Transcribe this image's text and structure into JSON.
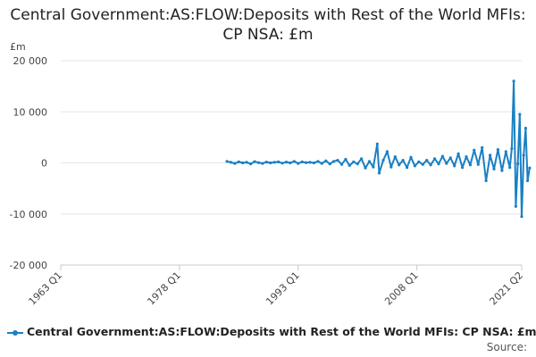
{
  "chart_data": {
    "type": "line",
    "title": "Central Government:AS:FLOW:Deposits with Rest of the World MFIs: CP NSA: £m",
    "ylabel": "£m",
    "xlabel": "",
    "xlim": [
      1963,
      2021.25
    ],
    "ylim": [
      -20000,
      20000
    ],
    "y_ticks": [
      {
        "value": 20000,
        "label": "20 000"
      },
      {
        "value": 10000,
        "label": "10 000"
      },
      {
        "value": 0,
        "label": "0"
      },
      {
        "value": -10000,
        "label": "-10 000"
      },
      {
        "value": -20000,
        "label": "-20 000"
      }
    ],
    "x_ticks": [
      {
        "value": 1963,
        "label": "1963 Q1"
      },
      {
        "value": 1978,
        "label": "1978 Q1"
      },
      {
        "value": 1993,
        "label": "1993 Q1"
      },
      {
        "value": 2008,
        "label": "2008 Q1"
      },
      {
        "value": 2021.25,
        "label": "2021 Q2"
      }
    ],
    "grid": true,
    "legend_position": "bottom",
    "series": [
      {
        "name": "Central Government:AS:FLOW:Deposits with Rest of the World MFIs: CP NSA: £m",
        "color": "#1a80c4",
        "points": [
          [
            1984.0,
            300
          ],
          [
            1984.5,
            100
          ],
          [
            1985.0,
            -100
          ],
          [
            1985.5,
            200
          ],
          [
            1986.0,
            0
          ],
          [
            1986.5,
            100
          ],
          [
            1987.0,
            -200
          ],
          [
            1987.5,
            250
          ],
          [
            1988.0,
            50
          ],
          [
            1988.5,
            -100
          ],
          [
            1989.0,
            150
          ],
          [
            1989.5,
            0
          ],
          [
            1990.0,
            100
          ],
          [
            1990.5,
            200
          ],
          [
            1991.0,
            -50
          ],
          [
            1991.5,
            150
          ],
          [
            1992.0,
            0
          ],
          [
            1992.5,
            300
          ],
          [
            1993.0,
            -100
          ],
          [
            1993.5,
            200
          ],
          [
            1994.0,
            50
          ],
          [
            1994.5,
            100
          ],
          [
            1995.0,
            0
          ],
          [
            1995.5,
            300
          ],
          [
            1996.0,
            -100
          ],
          [
            1996.5,
            400
          ],
          [
            1997.0,
            -200
          ],
          [
            1997.5,
            300
          ],
          [
            1998.0,
            500
          ],
          [
            1998.5,
            -300
          ],
          [
            1999.0,
            700
          ],
          [
            1999.5,
            -500
          ],
          [
            2000.0,
            200
          ],
          [
            2000.5,
            -200
          ],
          [
            2001.0,
            800
          ],
          [
            2001.5,
            -1000
          ],
          [
            2002.0,
            300
          ],
          [
            2002.5,
            -800
          ],
          [
            2003.0,
            3700
          ],
          [
            2003.25,
            -2000
          ],
          [
            2003.75,
            500
          ],
          [
            2004.25,
            2200
          ],
          [
            2004.75,
            -800
          ],
          [
            2005.25,
            1200
          ],
          [
            2005.75,
            -400
          ],
          [
            2006.25,
            500
          ],
          [
            2006.75,
            -900
          ],
          [
            2007.25,
            1100
          ],
          [
            2007.75,
            -600
          ],
          [
            2008.25,
            200
          ],
          [
            2008.75,
            -300
          ],
          [
            2009.25,
            500
          ],
          [
            2009.75,
            -400
          ],
          [
            2010.25,
            800
          ],
          [
            2010.75,
            -200
          ],
          [
            2011.25,
            1300
          ],
          [
            2011.75,
            -100
          ],
          [
            2012.25,
            1000
          ],
          [
            2012.75,
            -600
          ],
          [
            2013.25,
            1800
          ],
          [
            2013.75,
            -900
          ],
          [
            2014.25,
            1200
          ],
          [
            2014.75,
            -400
          ],
          [
            2015.25,
            2500
          ],
          [
            2015.75,
            -300
          ],
          [
            2016.25,
            3000
          ],
          [
            2016.75,
            -3500
          ],
          [
            2017.25,
            1500
          ],
          [
            2017.75,
            -1200
          ],
          [
            2018.25,
            2600
          ],
          [
            2018.75,
            -1500
          ],
          [
            2019.25,
            2200
          ],
          [
            2019.75,
            -900
          ],
          [
            2020.0,
            2800
          ],
          [
            2020.25,
            16000
          ],
          [
            2020.5,
            -8500
          ],
          [
            2020.75,
            -200
          ],
          [
            2021.0,
            9500
          ],
          [
            2021.25,
            -10500
          ],
          [
            2021.5,
            1500
          ],
          [
            2021.75,
            6800
          ],
          [
            2022.0,
            -3500
          ],
          [
            2022.25,
            -1000
          ]
        ]
      }
    ]
  },
  "source_label": "Source:"
}
